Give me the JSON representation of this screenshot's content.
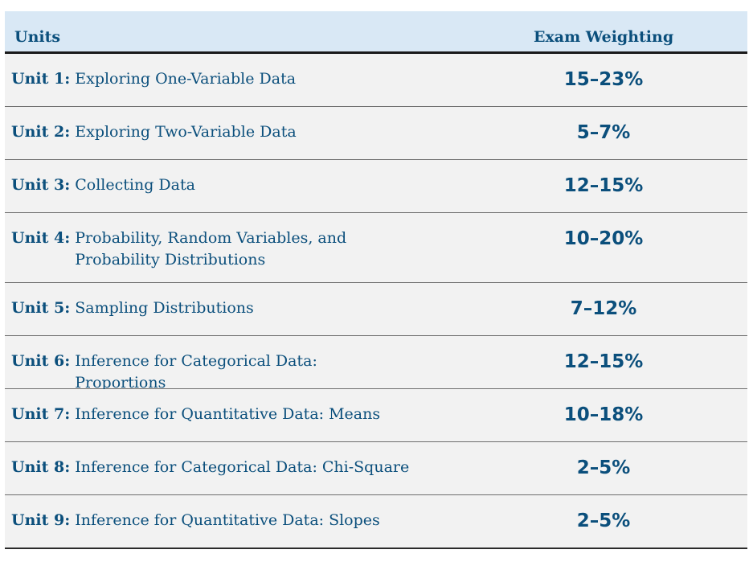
{
  "table": {
    "header": {
      "units": "Units",
      "weighting": "Exam Weighting"
    },
    "rows": [
      {
        "unit": "Unit 1:",
        "title": "Exploring One-Variable Data",
        "weight": "15–23%"
      },
      {
        "unit": "Unit 2:",
        "title": "Exploring Two-Variable Data",
        "weight": "5–7%"
      },
      {
        "unit": "Unit 3:",
        "title": "Collecting Data",
        "weight": "12–15%"
      },
      {
        "unit": "Unit 4:",
        "title": "Probability, Random Variables, and Probability Distributions",
        "weight": "10–20%"
      },
      {
        "unit": "Unit 5:",
        "title": "Sampling Distributions",
        "weight": "7–12%"
      },
      {
        "unit": "Unit 6:",
        "title": "Inference for Categorical Data: Proportions",
        "weight": "12–15%"
      },
      {
        "unit": "Unit 7:",
        "title": "Inference for Quantitative Data: Means",
        "weight": "10–18%"
      },
      {
        "unit": "Unit 8:",
        "title": "Inference for Categorical Data: Chi-Square",
        "weight": "2–5%"
      },
      {
        "unit": "Unit 9:",
        "title": "Inference for Quantitative Data: Slopes",
        "weight": "2–5%"
      }
    ]
  }
}
